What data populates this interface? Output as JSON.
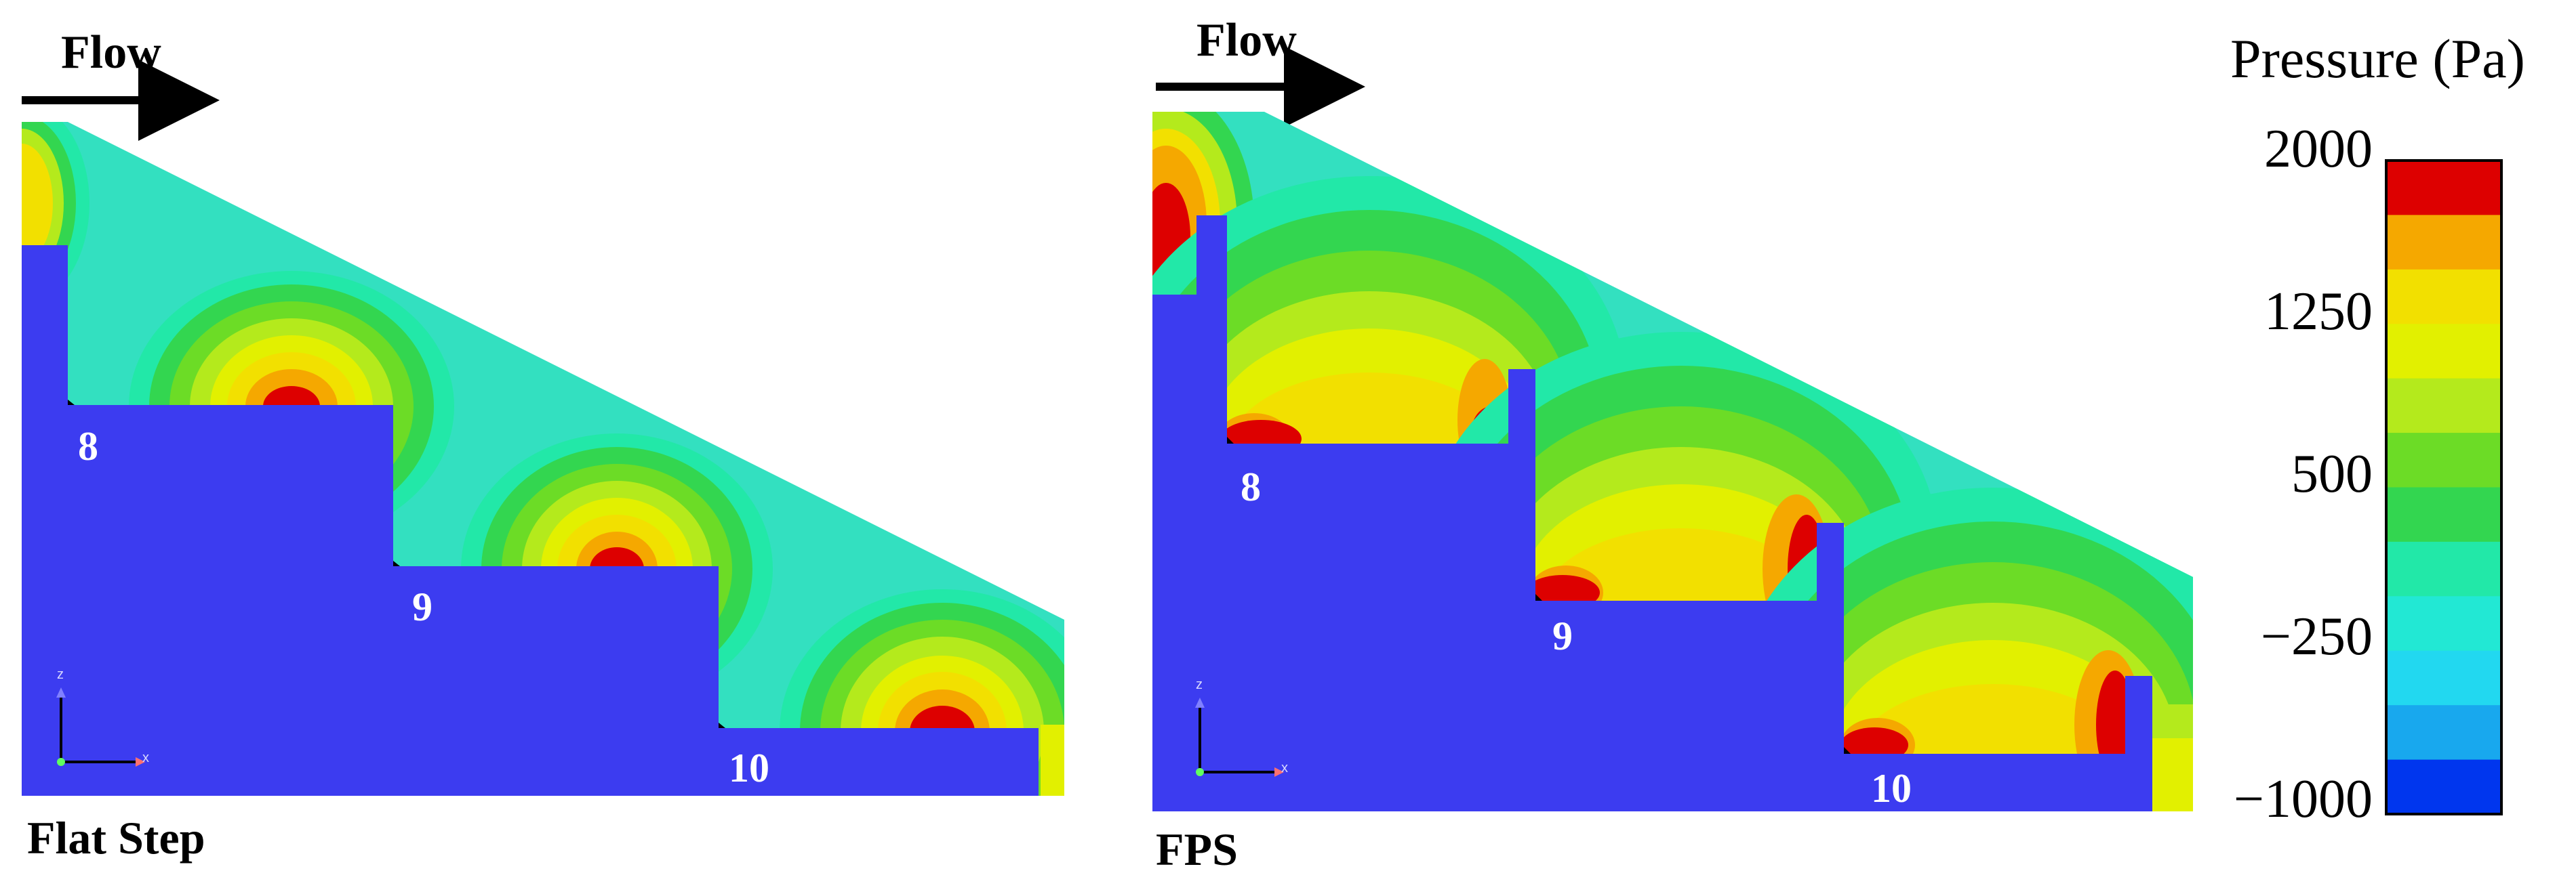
{
  "panels": {
    "left": {
      "flow_label": "Flow",
      "title": "Flat Step",
      "steps": [
        "8",
        "9",
        "10"
      ]
    },
    "right": {
      "flow_label": "Flow",
      "title": "FPS",
      "steps": [
        "8",
        "9",
        "10"
      ]
    }
  },
  "axes_triad": {
    "z": "z",
    "x": "x"
  },
  "legend": {
    "title": "Pressure (Pa)",
    "ticks": [
      "2000",
      "1250",
      "500",
      "−250",
      "−1000"
    ],
    "range": [
      -1000,
      2000
    ],
    "colors": [
      "#dd0000",
      "#f5a800",
      "#f2e000",
      "#e2f000",
      "#b4ea1c",
      "#6cdc26",
      "#33d650",
      "#22e8a8",
      "#22e8d4",
      "#22d8f0",
      "#18a8ee",
      "#0036ee"
    ]
  },
  "colors": {
    "solid_region": "#3c3cf0",
    "background_flow": "#33e0c0",
    "high_pressure": "#dd0000"
  }
}
